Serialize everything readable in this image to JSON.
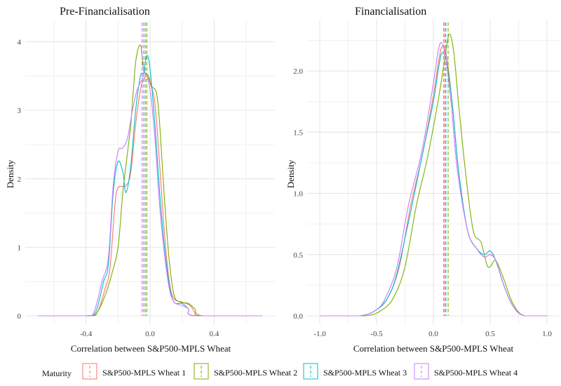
{
  "legend": {
    "title": "Maturity",
    "entries": [
      {
        "label": "S&P500-MPLS Wheat 1",
        "color": "#F8766D"
      },
      {
        "label": "S&P500-MPLS Wheat 2",
        "color": "#7CAE00"
      },
      {
        "label": "S&P500-MPLS Wheat 3",
        "color": "#00BFC4"
      },
      {
        "label": "S&P500-MPLS Wheat 4",
        "color": "#C77CFF"
      }
    ]
  },
  "colors": {
    "s1": "#F8766D",
    "s2": "#7CAE00",
    "s3": "#00BFC4",
    "s4": "#C77CFF"
  },
  "chart_data": [
    {
      "type": "line",
      "title": "Pre-Financialisation",
      "xlabel": "Correlation between S&P500-MPLS Wheat",
      "ylabel": "Density",
      "xlim": [
        -0.7,
        0.7
      ],
      "ylim": [
        0,
        4.2
      ],
      "xticks": [
        -0.4,
        0.0,
        0.4
      ],
      "xtick_labels": [
        "-0.4",
        "0.0",
        "0.4"
      ],
      "yticks": [
        0,
        1,
        2,
        3,
        4
      ],
      "ytick_labels": [
        "0",
        "1",
        "2",
        "3",
        "4"
      ],
      "grid": true,
      "series": [
        {
          "name": "S&P500-MPLS Wheat 1",
          "mean": -0.04,
          "points": [
            [
              -0.7,
              0
            ],
            [
              -0.4,
              0
            ],
            [
              -0.33,
              0.05
            ],
            [
              -0.28,
              0.4
            ],
            [
              -0.25,
              0.7
            ],
            [
              -0.22,
              1.6
            ],
            [
              -0.2,
              1.87
            ],
            [
              -0.15,
              1.9
            ],
            [
              -0.12,
              2.1
            ],
            [
              -0.09,
              2.8
            ],
            [
              -0.06,
              3.3
            ],
            [
              -0.04,
              3.45
            ],
            [
              -0.02,
              3.5
            ],
            [
              0.0,
              3.4
            ],
            [
              0.03,
              3.1
            ],
            [
              0.06,
              2.2
            ],
            [
              0.09,
              1.2
            ],
            [
              0.12,
              0.5
            ],
            [
              0.15,
              0.25
            ],
            [
              0.2,
              0.2
            ],
            [
              0.25,
              0.15
            ],
            [
              0.28,
              0.05
            ],
            [
              0.32,
              0
            ],
            [
              0.7,
              0
            ]
          ]
        },
        {
          "name": "S&P500-MPLS Wheat 2",
          "mean": -0.02,
          "points": [
            [
              -0.7,
              0
            ],
            [
              -0.38,
              0
            ],
            [
              -0.33,
              0.05
            ],
            [
              -0.28,
              0.3
            ],
            [
              -0.24,
              0.6
            ],
            [
              -0.2,
              1.0
            ],
            [
              -0.17,
              1.8
            ],
            [
              -0.14,
              2.4
            ],
            [
              -0.12,
              2.8
            ],
            [
              -0.09,
              3.7
            ],
            [
              -0.06,
              3.95
            ],
            [
              -0.04,
              3.6
            ],
            [
              -0.01,
              3.5
            ],
            [
              0.01,
              3.35
            ],
            [
              0.04,
              3.25
            ],
            [
              0.06,
              2.8
            ],
            [
              0.09,
              1.7
            ],
            [
              0.12,
              0.8
            ],
            [
              0.15,
              0.3
            ],
            [
              0.19,
              0.2
            ],
            [
              0.24,
              0.18
            ],
            [
              0.28,
              0.1
            ],
            [
              0.33,
              0
            ],
            [
              0.7,
              0
            ]
          ]
        },
        {
          "name": "S&P500-MPLS Wheat 3",
          "mean": -0.03,
          "points": [
            [
              -0.7,
              0
            ],
            [
              -0.4,
              0
            ],
            [
              -0.34,
              0.05
            ],
            [
              -0.29,
              0.5
            ],
            [
              -0.26,
              0.75
            ],
            [
              -0.23,
              1.8
            ],
            [
              -0.2,
              2.25
            ],
            [
              -0.17,
              2.1
            ],
            [
              -0.15,
              1.8
            ],
            [
              -0.12,
              2.2
            ],
            [
              -0.09,
              3.0
            ],
            [
              -0.06,
              3.5
            ],
            [
              -0.04,
              3.55
            ],
            [
              -0.02,
              3.8
            ],
            [
              0.0,
              3.6
            ],
            [
              0.03,
              2.8
            ],
            [
              0.06,
              1.8
            ],
            [
              0.09,
              1.0
            ],
            [
              0.12,
              0.45
            ],
            [
              0.15,
              0.2
            ],
            [
              0.2,
              0.18
            ],
            [
              0.24,
              0.1
            ],
            [
              0.28,
              0
            ],
            [
              0.7,
              0
            ]
          ]
        },
        {
          "name": "S&P500-MPLS Wheat 4",
          "mean": -0.05,
          "points": [
            [
              -0.7,
              0
            ],
            [
              -0.4,
              0
            ],
            [
              -0.35,
              0.05
            ],
            [
              -0.3,
              0.5
            ],
            [
              -0.26,
              0.85
            ],
            [
              -0.23,
              1.9
            ],
            [
              -0.2,
              2.4
            ],
            [
              -0.17,
              2.45
            ],
            [
              -0.14,
              2.6
            ],
            [
              -0.11,
              3.0
            ],
            [
              -0.08,
              3.3
            ],
            [
              -0.05,
              3.45
            ],
            [
              -0.03,
              3.55
            ],
            [
              0.0,
              3.3
            ],
            [
              0.03,
              2.6
            ],
            [
              0.06,
              1.6
            ],
            [
              0.09,
              0.9
            ],
            [
              0.12,
              0.4
            ],
            [
              0.15,
              0.2
            ],
            [
              0.2,
              0.15
            ],
            [
              0.24,
              0.1
            ],
            [
              0.28,
              0
            ],
            [
              0.7,
              0
            ]
          ]
        }
      ]
    },
    {
      "type": "line",
      "title": "Financialisation",
      "xlabel": "Correlation between S&P500-MPLS Wheat",
      "ylabel": "Density",
      "xlim": [
        -1.0,
        1.0
      ],
      "ylim": [
        0,
        2.35
      ],
      "xticks": [
        -1.0,
        -0.5,
        0.0,
        0.5,
        1.0
      ],
      "xtick_labels": [
        "-1.0",
        "-0.5",
        "0.0",
        "0.5",
        "1.0"
      ],
      "yticks": [
        0,
        0.5,
        1.0,
        1.5,
        2.0
      ],
      "ytick_labels": [
        "0.0",
        "0.5",
        "1.0",
        "1.5",
        "2.0"
      ],
      "grid": true,
      "series": [
        {
          "name": "S&P500-MPLS Wheat 1",
          "mean": 0.1,
          "points": [
            [
              -1.0,
              0
            ],
            [
              -0.65,
              0
            ],
            [
              -0.5,
              0.05
            ],
            [
              -0.4,
              0.15
            ],
            [
              -0.3,
              0.4
            ],
            [
              -0.2,
              0.9
            ],
            [
              -0.1,
              1.3
            ],
            [
              0.0,
              1.8
            ],
            [
              0.05,
              2.1
            ],
            [
              0.08,
              2.2
            ],
            [
              0.12,
              2.1
            ],
            [
              0.17,
              1.7
            ],
            [
              0.22,
              1.2
            ],
            [
              0.3,
              0.7
            ],
            [
              0.38,
              0.55
            ],
            [
              0.45,
              0.48
            ],
            [
              0.5,
              0.5
            ],
            [
              0.55,
              0.45
            ],
            [
              0.62,
              0.25
            ],
            [
              0.7,
              0.08
            ],
            [
              0.8,
              0
            ],
            [
              1.0,
              0
            ]
          ]
        },
        {
          "name": "S&P500-MPLS Wheat 2",
          "mean": 0.13,
          "points": [
            [
              -1.0,
              0
            ],
            [
              -0.6,
              0
            ],
            [
              -0.45,
              0.05
            ],
            [
              -0.35,
              0.15
            ],
            [
              -0.25,
              0.4
            ],
            [
              -0.15,
              0.9
            ],
            [
              -0.05,
              1.3
            ],
            [
              0.05,
              1.8
            ],
            [
              0.1,
              2.1
            ],
            [
              0.14,
              2.3
            ],
            [
              0.18,
              2.15
            ],
            [
              0.22,
              1.75
            ],
            [
              0.28,
              1.2
            ],
            [
              0.35,
              0.7
            ],
            [
              0.42,
              0.6
            ],
            [
              0.47,
              0.42
            ],
            [
              0.5,
              0.4
            ],
            [
              0.55,
              0.45
            ],
            [
              0.62,
              0.3
            ],
            [
              0.7,
              0.1
            ],
            [
              0.8,
              0
            ],
            [
              1.0,
              0
            ]
          ]
        },
        {
          "name": "S&P500-MPLS Wheat 3",
          "mean": 0.11,
          "points": [
            [
              -1.0,
              0
            ],
            [
              -0.65,
              0
            ],
            [
              -0.5,
              0.05
            ],
            [
              -0.4,
              0.15
            ],
            [
              -0.32,
              0.35
            ],
            [
              -0.2,
              0.85
            ],
            [
              -0.1,
              1.3
            ],
            [
              0.0,
              1.75
            ],
            [
              0.05,
              2.05
            ],
            [
              0.08,
              2.15
            ],
            [
              0.12,
              2.05
            ],
            [
              0.17,
              1.7
            ],
            [
              0.22,
              1.2
            ],
            [
              0.3,
              0.7
            ],
            [
              0.38,
              0.55
            ],
            [
              0.45,
              0.5
            ],
            [
              0.5,
              0.53
            ],
            [
              0.55,
              0.45
            ],
            [
              0.62,
              0.25
            ],
            [
              0.7,
              0.08
            ],
            [
              0.8,
              0
            ],
            [
              1.0,
              0
            ]
          ]
        },
        {
          "name": "S&P500-MPLS Wheat 4",
          "mean": 0.09,
          "points": [
            [
              -1.0,
              0
            ],
            [
              -0.65,
              0
            ],
            [
              -0.5,
              0.05
            ],
            [
              -0.42,
              0.15
            ],
            [
              -0.32,
              0.4
            ],
            [
              -0.22,
              0.9
            ],
            [
              -0.1,
              1.35
            ],
            [
              0.0,
              1.9
            ],
            [
              0.04,
              2.15
            ],
            [
              0.07,
              2.23
            ],
            [
              0.11,
              2.1
            ],
            [
              0.16,
              1.7
            ],
            [
              0.21,
              1.2
            ],
            [
              0.3,
              0.7
            ],
            [
              0.38,
              0.55
            ],
            [
              0.45,
              0.48
            ],
            [
              0.5,
              0.5
            ],
            [
              0.55,
              0.45
            ],
            [
              0.62,
              0.25
            ],
            [
              0.7,
              0.08
            ],
            [
              0.8,
              0
            ],
            [
              1.0,
              0
            ]
          ]
        }
      ]
    }
  ]
}
